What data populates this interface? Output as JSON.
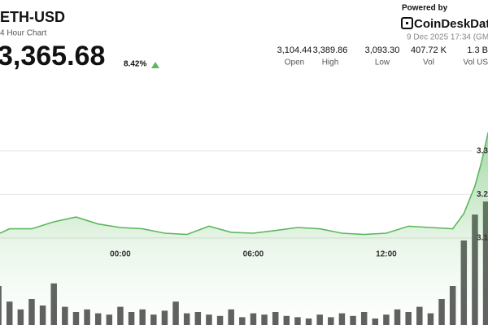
{
  "header": {
    "title": "ETH-USD",
    "subtitle": "4 Hour Chart",
    "price": "3,365.68",
    "change": "8.42%",
    "powered_by": "Powered by",
    "brand": "CoinDeskDat",
    "timestamp": "9 Dec 2025 17:34 (GMT",
    "stats": [
      {
        "value": "3,104.44",
        "label": "Open"
      },
      {
        "value": "3,389.86",
        "label": "High"
      },
      {
        "value": "3,093.30",
        "label": "Low"
      },
      {
        "value": "407.72 K",
        "label": "Vol"
      },
      {
        "value": "1.3 B",
        "label": "Vol US"
      }
    ]
  },
  "chart_data": {
    "type": "line",
    "color": "#5cb85c",
    "x": [
      -5.43,
      -5,
      -4,
      -3,
      -2,
      -1,
      0,
      1,
      2,
      3,
      4,
      5,
      6,
      7,
      8,
      9,
      10,
      11,
      12,
      13,
      14,
      15,
      15.5,
      16,
      16.3,
      16.6
    ],
    "values": [
      3.111,
      3.121,
      3.121,
      3.137,
      3.148,
      3.132,
      3.124,
      3.121,
      3.111,
      3.108,
      3.127,
      3.113,
      3.111,
      3.117,
      3.124,
      3.121,
      3.111,
      3.108,
      3.111,
      3.127,
      3.124,
      3.121,
      3.156,
      3.219,
      3.275,
      3.343
    ],
    "xlim": [
      -5.43,
      16.59
    ],
    "xticks": [
      {
        "value": 0,
        "label": "00:00"
      },
      {
        "value": 6,
        "label": "06:00"
      },
      {
        "value": 12,
        "label": "12:00"
      }
    ],
    "ylim": [
      2.9,
      3.46
    ],
    "yticks": [
      3.3,
      3.2,
      3.1
    ],
    "grid": true,
    "volume": {
      "color": "#444444",
      "x": [
        -5.5,
        -5,
        -4.5,
        -4,
        -3.5,
        -3,
        -2.5,
        -2,
        -1.5,
        -1,
        -0.5,
        0,
        0.5,
        1,
        1.5,
        2,
        2.5,
        3,
        3.5,
        4,
        4.5,
        5,
        5.5,
        6,
        6.5,
        7,
        7.5,
        8,
        8.5,
        9,
        9.5,
        10,
        10.5,
        11,
        11.5,
        12,
        12.5,
        13,
        13.5,
        14,
        14.5,
        15,
        15.5,
        16,
        16.5
      ],
      "values": [
        30,
        18,
        12,
        20,
        15,
        32,
        14,
        10,
        12,
        9,
        8,
        14,
        10,
        12,
        8,
        11,
        18,
        9,
        10,
        8,
        7,
        12,
        6,
        9,
        8,
        10,
        7,
        6,
        5,
        8,
        6,
        9,
        7,
        10,
        5,
        8,
        12,
        10,
        14,
        9,
        20,
        30,
        65,
        85,
        95
      ],
      "y2lim": [
        0,
        100
      ]
    }
  }
}
